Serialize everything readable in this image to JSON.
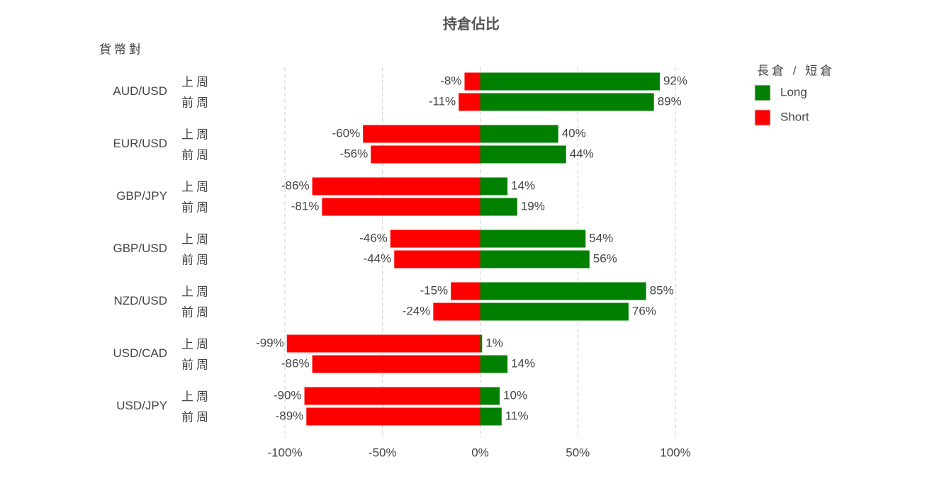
{
  "chart_data": {
    "type": "diverging-bar",
    "title": "持倉佔比",
    "y_axis_label": "貨幣對",
    "groups": [
      "AUD/USD",
      "EUR/USD",
      "GBP/JPY",
      "GBP/USD",
      "NZD/USD",
      "USD/CAD",
      "USD/JPY"
    ],
    "categories": [
      "上周",
      "前周",
      "上周",
      "前周",
      "上周",
      "前周",
      "上周",
      "前周",
      "上周",
      "前周",
      "上周",
      "前周",
      "上周",
      "前周"
    ],
    "legend_title": "長倉 / 短倉",
    "series": [
      {
        "name": "Long",
        "color": "#008000",
        "values": [
          92,
          89,
          40,
          44,
          14,
          19,
          54,
          56,
          85,
          76,
          1,
          14,
          10,
          11
        ],
        "value_labels": [
          "92%",
          "89%",
          "40%",
          "44%",
          "14%",
          "19%",
          "54%",
          "56%",
          "85%",
          "76%",
          "1%",
          "14%",
          "10%",
          "11%"
        ]
      },
      {
        "name": "Short",
        "color": "#ff0000",
        "values": [
          -8,
          -11,
          -60,
          -56,
          -86,
          -81,
          -46,
          -44,
          -15,
          -24,
          -99,
          -86,
          -90,
          -89
        ],
        "value_labels": [
          "-8%",
          "-11%",
          "-60%",
          "-56%",
          "-86%",
          "-81%",
          "-46%",
          "-44%",
          "-15%",
          "-24%",
          "-99%",
          "-86%",
          "-90%",
          "-89%"
        ]
      }
    ],
    "xlim": [
      -100,
      100
    ],
    "xticks": [
      {
        "value": -100,
        "label": "-100%"
      },
      {
        "value": -50,
        "label": "-50%"
      },
      {
        "value": 0,
        "label": "0%"
      },
      {
        "value": 50,
        "label": "50%"
      },
      {
        "value": 100,
        "label": "100%"
      }
    ],
    "grid": true
  }
}
